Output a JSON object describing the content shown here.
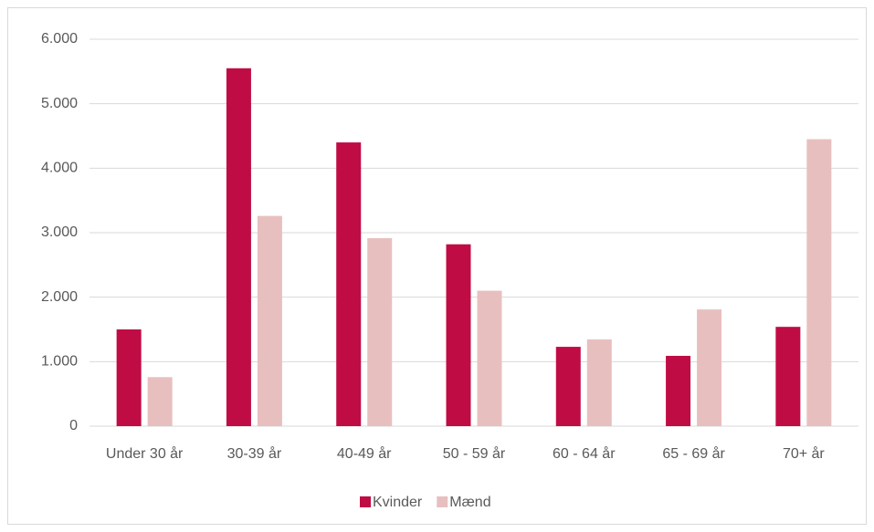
{
  "chart_data": {
    "type": "bar",
    "categories": [
      "Under 30 år",
      "30-39 år",
      "40-49 år",
      "50 - 59 år",
      "60 - 64 år",
      "65 - 69 år",
      "70+ år"
    ],
    "series": [
      {
        "name": "Kvinder",
        "color": "#c00c45",
        "values": [
          1500,
          5550,
          4400,
          2820,
          1230,
          1090,
          1540
        ]
      },
      {
        "name": "Mænd",
        "color": "#e8bfbf",
        "values": [
          760,
          3260,
          2915,
          2100,
          1345,
          1810,
          4450
        ]
      }
    ],
    "ylim": [
      0,
      6000
    ],
    "yticks": [
      0,
      {
        "value": 1000,
        "label": "1.000"
      },
      {
        "value": 2000,
        "label": "2.000"
      },
      {
        "value": 3000,
        "label": "3.000"
      },
      {
        "value": 4000,
        "label": "4.000"
      },
      {
        "value": 5000,
        "label": "5.000"
      },
      {
        "value": 6000,
        "label": "6.000"
      }
    ],
    "grid": true,
    "legend": "bottom"
  }
}
